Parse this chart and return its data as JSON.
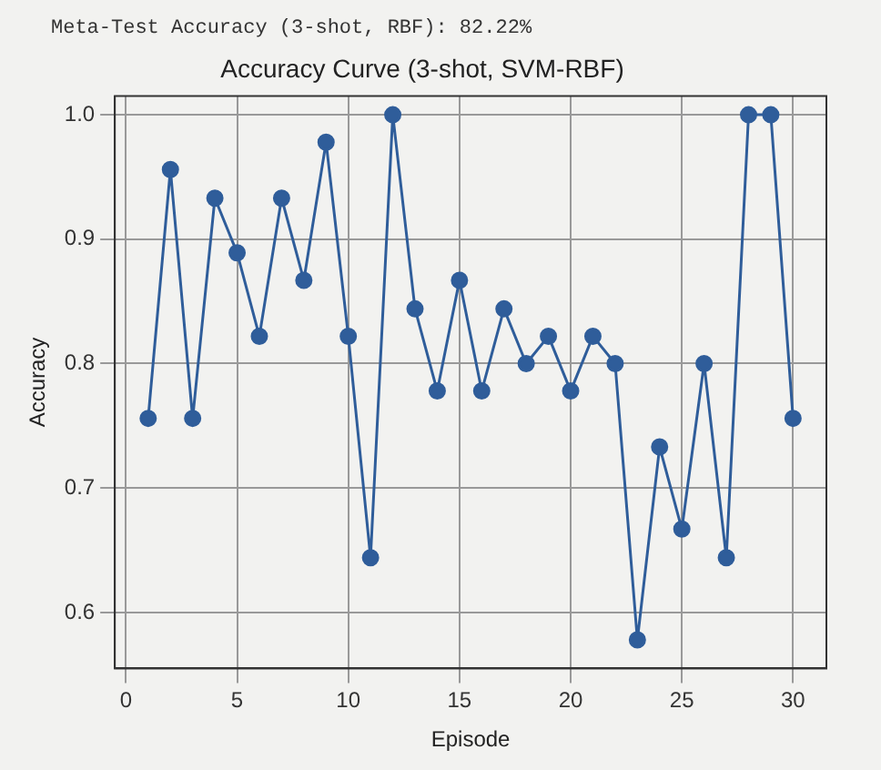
{
  "chart_data": {
    "type": "line",
    "title": "Accuracy Curve (3-shot, SVM-RBF)",
    "xlabel": "Episode",
    "ylabel": "Accuracy",
    "annotations": [
      "Meta-Test Accuracy (3-shot, RBF): 82.22%"
    ],
    "x": [
      1,
      2,
      3,
      4,
      5,
      6,
      7,
      8,
      9,
      10,
      11,
      12,
      13,
      14,
      15,
      16,
      17,
      18,
      19,
      20,
      21,
      22,
      23,
      24,
      25,
      26,
      27,
      28,
      29,
      30
    ],
    "series": [
      {
        "color": "#2f5d9a",
        "values": [
          0.756,
          0.956,
          0.756,
          0.933,
          0.889,
          0.822,
          0.933,
          0.867,
          0.978,
          0.822,
          0.644,
          1.0,
          0.844,
          0.778,
          0.867,
          0.778,
          0.844,
          0.8,
          0.822,
          0.778,
          0.822,
          0.8,
          0.578,
          0.733,
          0.667,
          0.8,
          0.644,
          1.0,
          1.0,
          0.756
        ]
      }
    ],
    "xlim": [
      -0.5,
      31.5
    ],
    "xticks": [
      0,
      5,
      10,
      15,
      20,
      25,
      30
    ],
    "ylim": [
      0.555,
      1.015
    ],
    "yticks": [
      0.6,
      0.7,
      0.8,
      0.9,
      {
        "value": 1,
        "label": "1.0"
      }
    ],
    "grid": true,
    "legend": false,
    "marker": "circle",
    "line_style": "solid"
  }
}
